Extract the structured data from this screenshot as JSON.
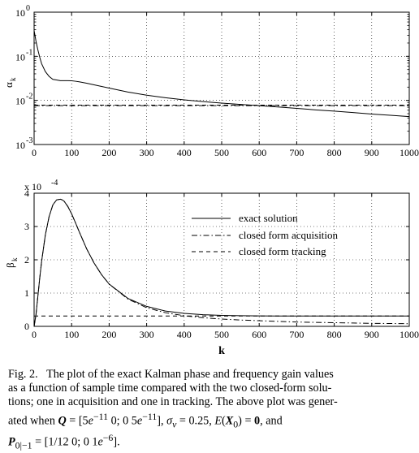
{
  "chart_data": [
    {
      "type": "line",
      "ylabel": "α",
      "ylabel_sub": "k",
      "yscale": "log",
      "xlim": [
        0,
        1000
      ],
      "ylim": [
        0.001,
        1
      ],
      "x_ticks": [
        "0",
        "100",
        "200",
        "300",
        "400",
        "500",
        "600",
        "700",
        "800",
        "900",
        "1000"
      ],
      "y_ticks": [
        {
          "base": "10",
          "exp": "0"
        },
        {
          "base": "10",
          "exp": "-1"
        },
        {
          "base": "10",
          "exp": "-2"
        },
        {
          "base": "10",
          "exp": "-3"
        }
      ],
      "grid": "dotted horizontal at decades",
      "series": [
        {
          "style": "solid",
          "x": [
            0,
            2,
            5,
            10,
            15,
            20,
            30,
            40,
            50,
            60,
            70,
            80,
            90,
            100,
            110,
            120,
            140,
            160,
            180,
            200,
            250,
            300,
            350,
            400,
            450,
            500,
            550,
            600,
            650,
            700,
            750,
            800,
            850,
            900,
            950,
            1000
          ],
          "y": [
            0.38,
            0.31,
            0.22,
            0.14,
            0.095,
            0.068,
            0.045,
            0.035,
            0.03,
            0.029,
            0.028,
            0.028,
            0.028,
            0.0278,
            0.0272,
            0.0264,
            0.0245,
            0.0225,
            0.0207,
            0.019,
            0.0155,
            0.0131,
            0.0115,
            0.0103,
            0.0094,
            0.0087,
            0.0081,
            0.0076,
            0.0071,
            0.0066,
            0.0061,
            0.0057,
            0.0053,
            0.0049,
            0.0046,
            0.0043
          ]
        },
        {
          "style": "dash-dot",
          "x": [
            0,
            1000
          ],
          "y": [
            0.0076,
            0.0076
          ]
        },
        {
          "style": "dashed",
          "x": [
            0,
            1000
          ],
          "y": [
            0.0078,
            0.0078
          ]
        }
      ]
    },
    {
      "type": "line",
      "xlabel": "k",
      "ylabel": "β",
      "ylabel_sub": "k",
      "xlim": [
        0,
        1000
      ],
      "ylim": [
        0,
        4
      ],
      "y_multiplier": {
        "text": "x 10",
        "exp": "-4"
      },
      "x_ticks": [
        "0",
        "100",
        "200",
        "300",
        "400",
        "500",
        "600",
        "700",
        "800",
        "900",
        "1000"
      ],
      "y_ticks": [
        "0",
        "1",
        "2",
        "3",
        "4"
      ],
      "grid": "dotted horizontal",
      "legend": [
        "exact solution",
        "closed form acquisition",
        "closed form tracking"
      ],
      "legend_position": "top-right",
      "series": [
        {
          "name": "exact solution",
          "style": "solid",
          "x": [
            0,
            5,
            10,
            15,
            20,
            30,
            40,
            50,
            60,
            70,
            75,
            80,
            90,
            100,
            110,
            120,
            140,
            160,
            180,
            200,
            250,
            300,
            350,
            400,
            450,
            500,
            550,
            600,
            650,
            700,
            750,
            800,
            850,
            900,
            950,
            1000
          ],
          "y": [
            0,
            0.35,
            0.9,
            1.45,
            1.95,
            2.75,
            3.3,
            3.65,
            3.8,
            3.82,
            3.8,
            3.76,
            3.6,
            3.38,
            3.12,
            2.85,
            2.33,
            1.9,
            1.55,
            1.27,
            0.84,
            0.6,
            0.46,
            0.39,
            0.35,
            0.33,
            0.32,
            0.315,
            0.31,
            0.31,
            0.31,
            0.31,
            0.31,
            0.31,
            0.31,
            0.31
          ]
        },
        {
          "name": "closed form acquisition",
          "style": "dash-dot",
          "x": [
            0,
            5,
            10,
            15,
            20,
            30,
            40,
            50,
            60,
            70,
            75,
            80,
            90,
            100,
            110,
            120,
            140,
            160,
            180,
            200,
            250,
            300,
            350,
            400,
            450,
            500,
            550,
            600,
            650,
            700,
            750,
            800,
            850,
            900,
            950,
            1000
          ],
          "y": [
            0,
            0.35,
            0.9,
            1.45,
            1.95,
            2.75,
            3.3,
            3.65,
            3.8,
            3.82,
            3.8,
            3.76,
            3.6,
            3.38,
            3.12,
            2.85,
            2.33,
            1.9,
            1.55,
            1.27,
            0.82,
            0.56,
            0.41,
            0.32,
            0.26,
            0.22,
            0.19,
            0.17,
            0.15,
            0.13,
            0.12,
            0.11,
            0.1,
            0.09,
            0.085,
            0.08
          ]
        },
        {
          "name": "closed form tracking",
          "style": "dashed",
          "x": [
            0,
            1000
          ],
          "y": [
            0.31,
            0.31
          ]
        }
      ]
    }
  ],
  "caption": {
    "fig_label": "Fig. 2.",
    "line1": "The plot of the exact Kalman phase and frequency gain values",
    "line2": "as a function of sample time compared with the two closed-form solu-",
    "line3": "tions; one in acquisition and one in tracking. The above plot was gener-",
    "line4_pre": "ated when",
    "line4_Q": "Q",
    "line4_mid": "= [5",
    "line4_e": "e",
    "line4_e1": "−11",
    "line4_mid2": "0; 0 5",
    "line4_e2": "e",
    "line4_e3": "−11",
    "line4_mid3": "],",
    "line4_sigma": "σ",
    "line4_v": "v",
    "line4_mid4": "= 0.25,",
    "line4_E": "E",
    "line4_X": "X",
    "line4_X0": "0",
    "line4_mid5": ") =",
    "line4_zero": "0",
    "line4_and": ", and",
    "line5_P": "P",
    "line5_sub": "0|−1",
    "line5_mid": "= [1/12 0; 0 1",
    "line5_e": "e",
    "line5_exp": "−6",
    "line5_end": "]."
  }
}
